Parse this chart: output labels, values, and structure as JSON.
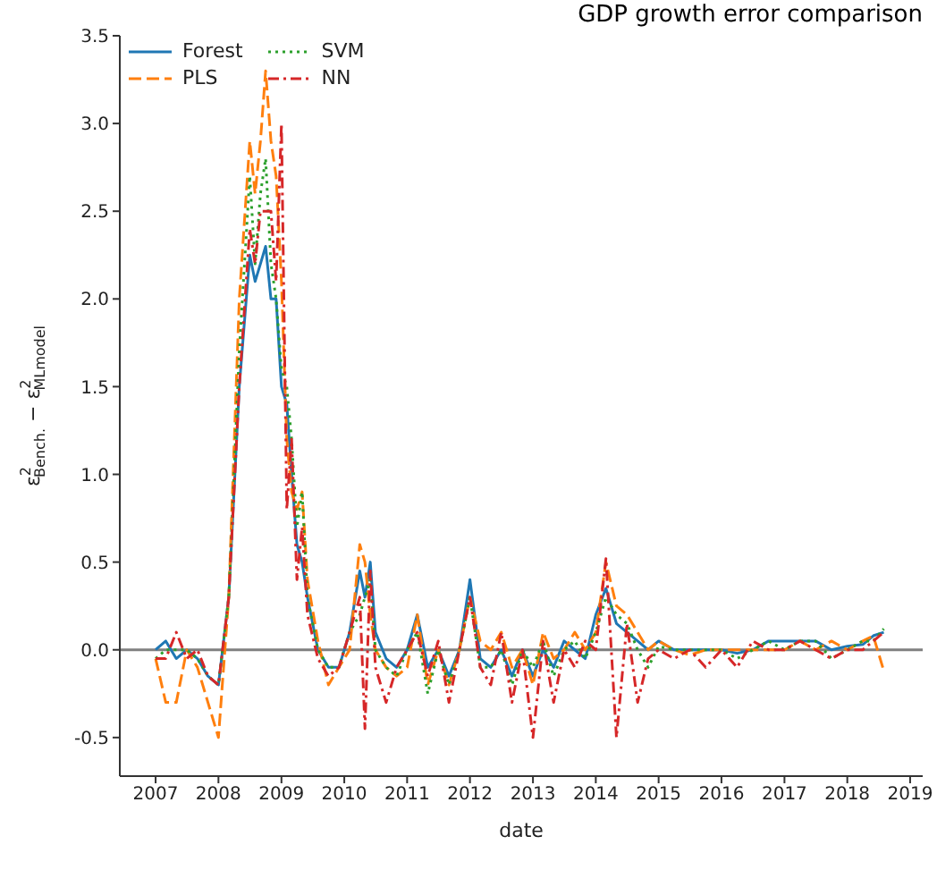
{
  "chart_data": {
    "type": "line",
    "title": "GDP growth error comparison",
    "xlabel": "date",
    "ylabel": "ε$^{2}$$_{Bench.}$ − ε$^{2}$$_{MLmodel}$",
    "x": [
      "2007-01",
      "2007-03",
      "2007-05",
      "2007-07",
      "2007-09",
      "2007-11",
      "2008-01",
      "2008-03",
      "2008-05",
      "2008-07",
      "2008-08",
      "2008-09",
      "2008-10",
      "2008-11",
      "2008-12",
      "2009-01",
      "2009-02",
      "2009-03",
      "2009-04",
      "2009-05",
      "2009-06",
      "2009-08",
      "2009-10",
      "2009-12",
      "2010-02",
      "2010-04",
      "2010-05",
      "2010-06",
      "2010-07",
      "2010-09",
      "2010-11",
      "2011-01",
      "2011-03",
      "2011-05",
      "2011-07",
      "2011-09",
      "2011-11",
      "2012-01",
      "2012-03",
      "2012-05",
      "2012-07",
      "2012-09",
      "2012-11",
      "2013-01",
      "2013-03",
      "2013-05",
      "2013-07",
      "2013-09",
      "2013-11",
      "2014-01",
      "2014-03",
      "2014-05",
      "2014-07",
      "2014-09",
      "2014-11",
      "2015-01",
      "2015-04",
      "2015-07",
      "2015-10",
      "2016-01",
      "2016-04",
      "2016-07",
      "2016-10",
      "2017-01",
      "2017-04",
      "2017-07",
      "2017-10",
      "2018-01",
      "2018-04",
      "2018-06",
      "2018-08"
    ],
    "series": [
      {
        "name": "Forest",
        "color": "#1f77b4",
        "line_style": "solid",
        "values": [
          0.0,
          0.05,
          -0.05,
          0.0,
          -0.05,
          -0.15,
          -0.2,
          0.3,
          1.5,
          2.25,
          2.1,
          2.2,
          2.3,
          2.0,
          2.0,
          1.5,
          1.4,
          1.0,
          0.6,
          0.5,
          0.3,
          0.0,
          -0.1,
          -0.1,
          0.1,
          0.45,
          0.3,
          0.5,
          0.1,
          -0.05,
          -0.1,
          0.0,
          0.2,
          -0.1,
          0.0,
          -0.15,
          0.0,
          0.4,
          -0.05,
          -0.1,
          0.0,
          -0.15,
          0.0,
          -0.15,
          0.0,
          -0.1,
          0.05,
          0.0,
          -0.05,
          0.2,
          0.35,
          0.15,
          0.1,
          0.05,
          0.0,
          0.05,
          0.0,
          0.0,
          0.0,
          0.0,
          -0.02,
          0.0,
          0.05,
          0.05,
          0.05,
          0.05,
          0.0,
          0.02,
          0.03,
          0.08,
          0.1
        ]
      },
      {
        "name": "PLS",
        "color": "#ff7f0e",
        "line_style": "dashed",
        "values": [
          -0.05,
          -0.3,
          -0.3,
          0.0,
          -0.1,
          -0.3,
          -0.5,
          0.3,
          2.0,
          2.9,
          2.6,
          2.9,
          3.3,
          2.9,
          2.7,
          2.1,
          1.2,
          0.9,
          0.8,
          0.9,
          0.4,
          0.05,
          -0.2,
          -0.1,
          0.0,
          0.6,
          0.5,
          0.2,
          0.0,
          -0.1,
          -0.15,
          -0.1,
          0.2,
          -0.2,
          0.0,
          -0.2,
          0.0,
          0.3,
          0.05,
          0.0,
          0.1,
          -0.1,
          0.0,
          -0.2,
          0.1,
          -0.05,
          0.0,
          0.1,
          0.0,
          0.1,
          0.5,
          0.25,
          0.2,
          0.1,
          0.0,
          0.05,
          0.0,
          -0.03,
          0.0,
          0.0,
          0.0,
          0.0,
          0.0,
          0.0,
          0.05,
          0.0,
          0.05,
          0.0,
          0.05,
          0.08,
          -0.12
        ]
      },
      {
        "name": "SVM",
        "color": "#2ca02c",
        "line_style": "dotted",
        "values": [
          -0.05,
          0.0,
          0.0,
          0.0,
          -0.05,
          -0.15,
          -0.2,
          0.3,
          1.7,
          2.7,
          2.2,
          2.6,
          2.8,
          2.2,
          2.0,
          1.6,
          1.5,
          1.2,
          0.7,
          0.9,
          0.3,
          0.0,
          -0.1,
          -0.1,
          0.1,
          0.2,
          0.3,
          0.4,
          0.0,
          -0.1,
          -0.15,
          0.0,
          0.1,
          -0.25,
          0.0,
          -0.2,
          0.0,
          0.3,
          -0.1,
          -0.1,
          0.0,
          -0.2,
          0.0,
          -0.1,
          0.05,
          -0.15,
          0.0,
          0.05,
          -0.05,
          0.1,
          0.3,
          0.2,
          0.15,
          0.0,
          -0.1,
          0.02,
          0.0,
          0.0,
          0.0,
          0.0,
          -0.05,
          0.0,
          0.05,
          0.0,
          0.05,
          0.05,
          -0.05,
          0.0,
          0.05,
          0.05,
          0.12
        ]
      },
      {
        "name": "NN",
        "color": "#d62728",
        "line_style": "dashdot",
        "values": [
          -0.05,
          -0.05,
          0.1,
          -0.05,
          0.0,
          -0.15,
          -0.2,
          0.3,
          1.5,
          2.4,
          2.2,
          2.5,
          2.5,
          2.5,
          2.1,
          3.0,
          0.8,
          1.2,
          0.4,
          0.7,
          0.2,
          -0.05,
          -0.15,
          -0.1,
          0.1,
          0.3,
          -0.45,
          0.45,
          -0.1,
          -0.3,
          -0.1,
          0.0,
          0.1,
          -0.15,
          0.05,
          -0.3,
          0.0,
          0.3,
          -0.1,
          -0.2,
          0.1,
          -0.3,
          0.0,
          -0.5,
          0.05,
          -0.3,
          0.0,
          -0.1,
          0.05,
          0.0,
          0.52,
          -0.5,
          0.15,
          -0.3,
          -0.05,
          0.0,
          -0.05,
          0.0,
          -0.1,
          0.0,
          -0.1,
          0.05,
          0.0,
          0.0,
          0.05,
          0.0,
          -0.05,
          0.0,
          0.0,
          0.05,
          0.1
        ]
      }
    ],
    "xlim": [
      "2006-06-07",
      "2019-03-15"
    ],
    "xticks": [
      "2007",
      "2008",
      "2009",
      "2010",
      "2011",
      "2012",
      "2013",
      "2014",
      "2015",
      "2016",
      "2017",
      "2018",
      "2019"
    ],
    "ylim": [
      -0.72,
      3.5
    ],
    "yticks": [
      -0.5,
      {
        "value": 0,
        "label": "0.0"
      },
      0.5,
      {
        "value": 1,
        "label": "1.0"
      },
      1.5,
      {
        "value": 2,
        "label": "2.0"
      },
      2.5,
      {
        "value": 3,
        "label": "3.0"
      },
      3.5
    ],
    "ref_lines": [
      {
        "axis": "y",
        "value": 0,
        "color": "#808080"
      }
    ],
    "legend": "top left",
    "grid": false,
    "marker": "none"
  }
}
